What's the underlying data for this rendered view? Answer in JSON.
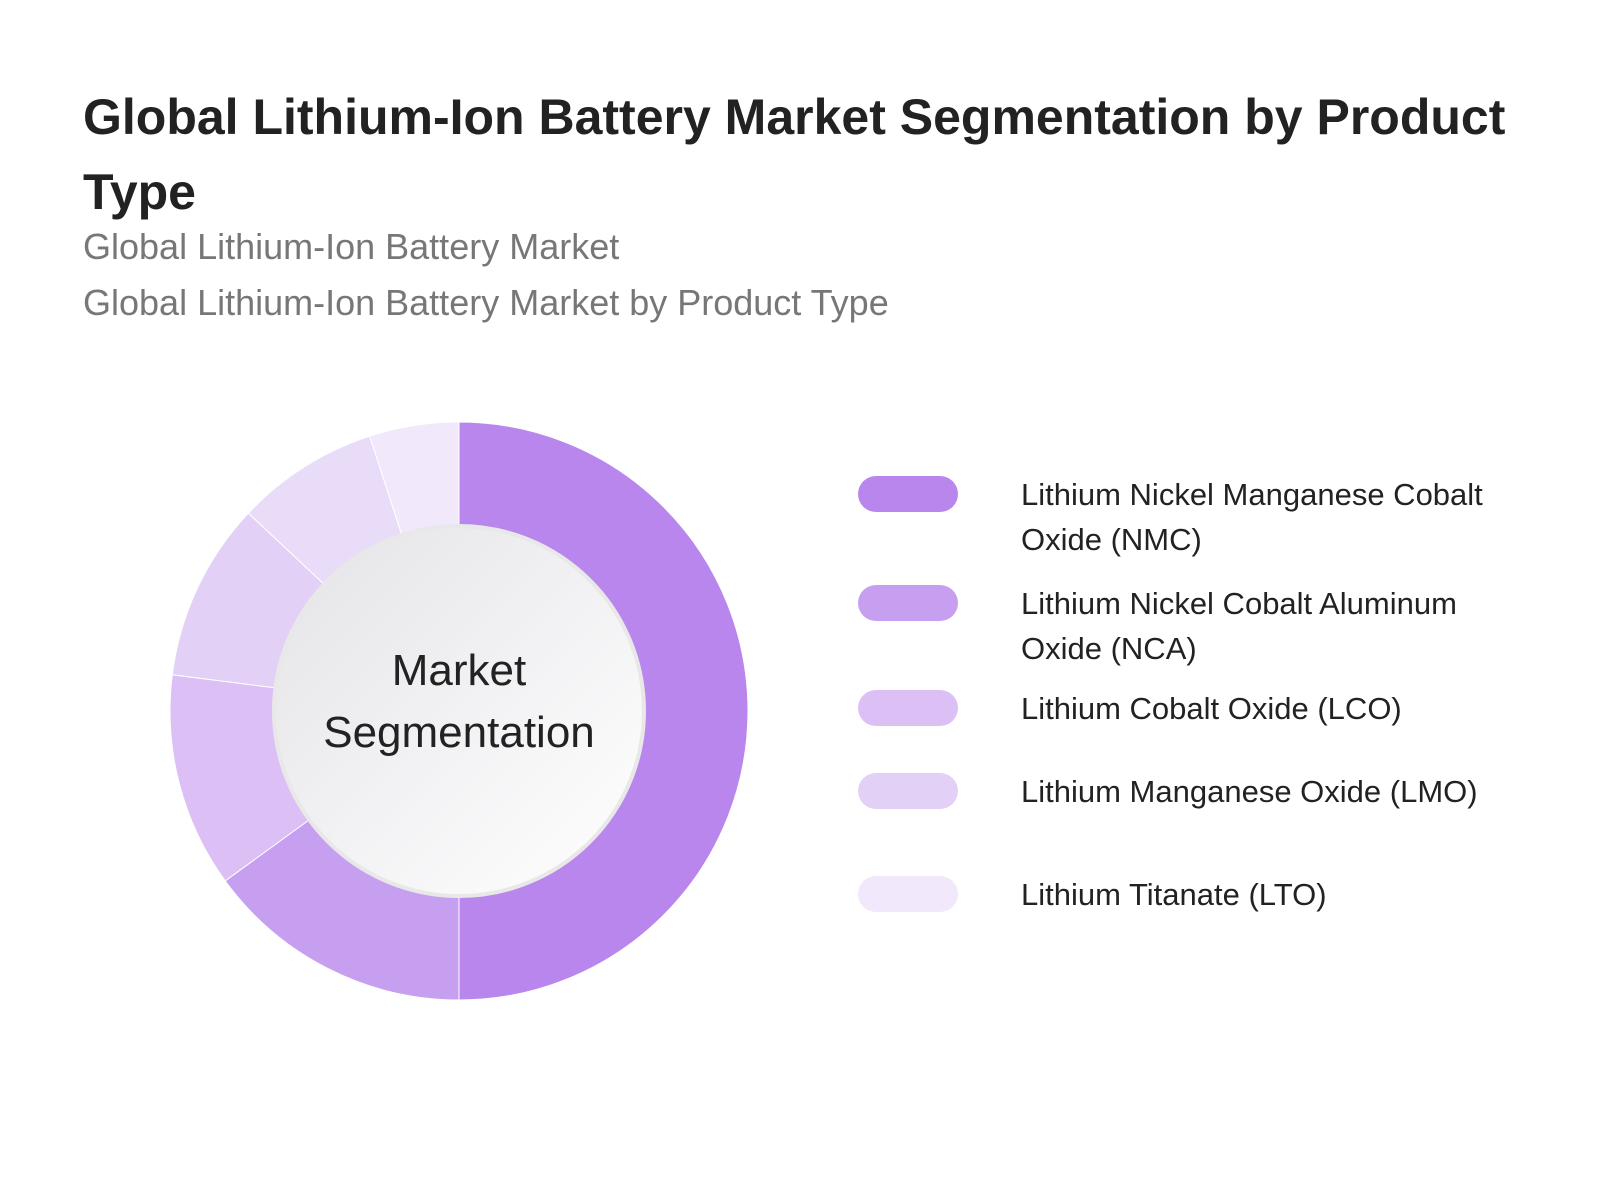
{
  "chart_data": {
    "type": "donut",
    "title": "Global Lithium-Ion Battery Market Segmentation by Product Type",
    "subtitle": [
      "Global Lithium-Ion Battery Market",
      "Global Lithium-Ion Battery Market by Product Type"
    ],
    "center_label": "Market Segmentation",
    "categories": [
      "Lithium Nickel Manganese Cobalt Oxide (NMC)",
      "Lithium Nickel Cobalt Aluminum Oxide (NCA)",
      "Lithium Cobalt Oxide (LCO)",
      "Lithium Manganese Oxide (LMO)",
      null,
      "Lithium Titanate (LTO)"
    ],
    "values": [
      50,
      15,
      12,
      10,
      8,
      5
    ],
    "colors": [
      "#b886ec",
      "#c79ff0",
      "#dcc0f5",
      "#e3d0f7",
      "#e9dcf9",
      "#f1e8fb"
    ]
  }
}
